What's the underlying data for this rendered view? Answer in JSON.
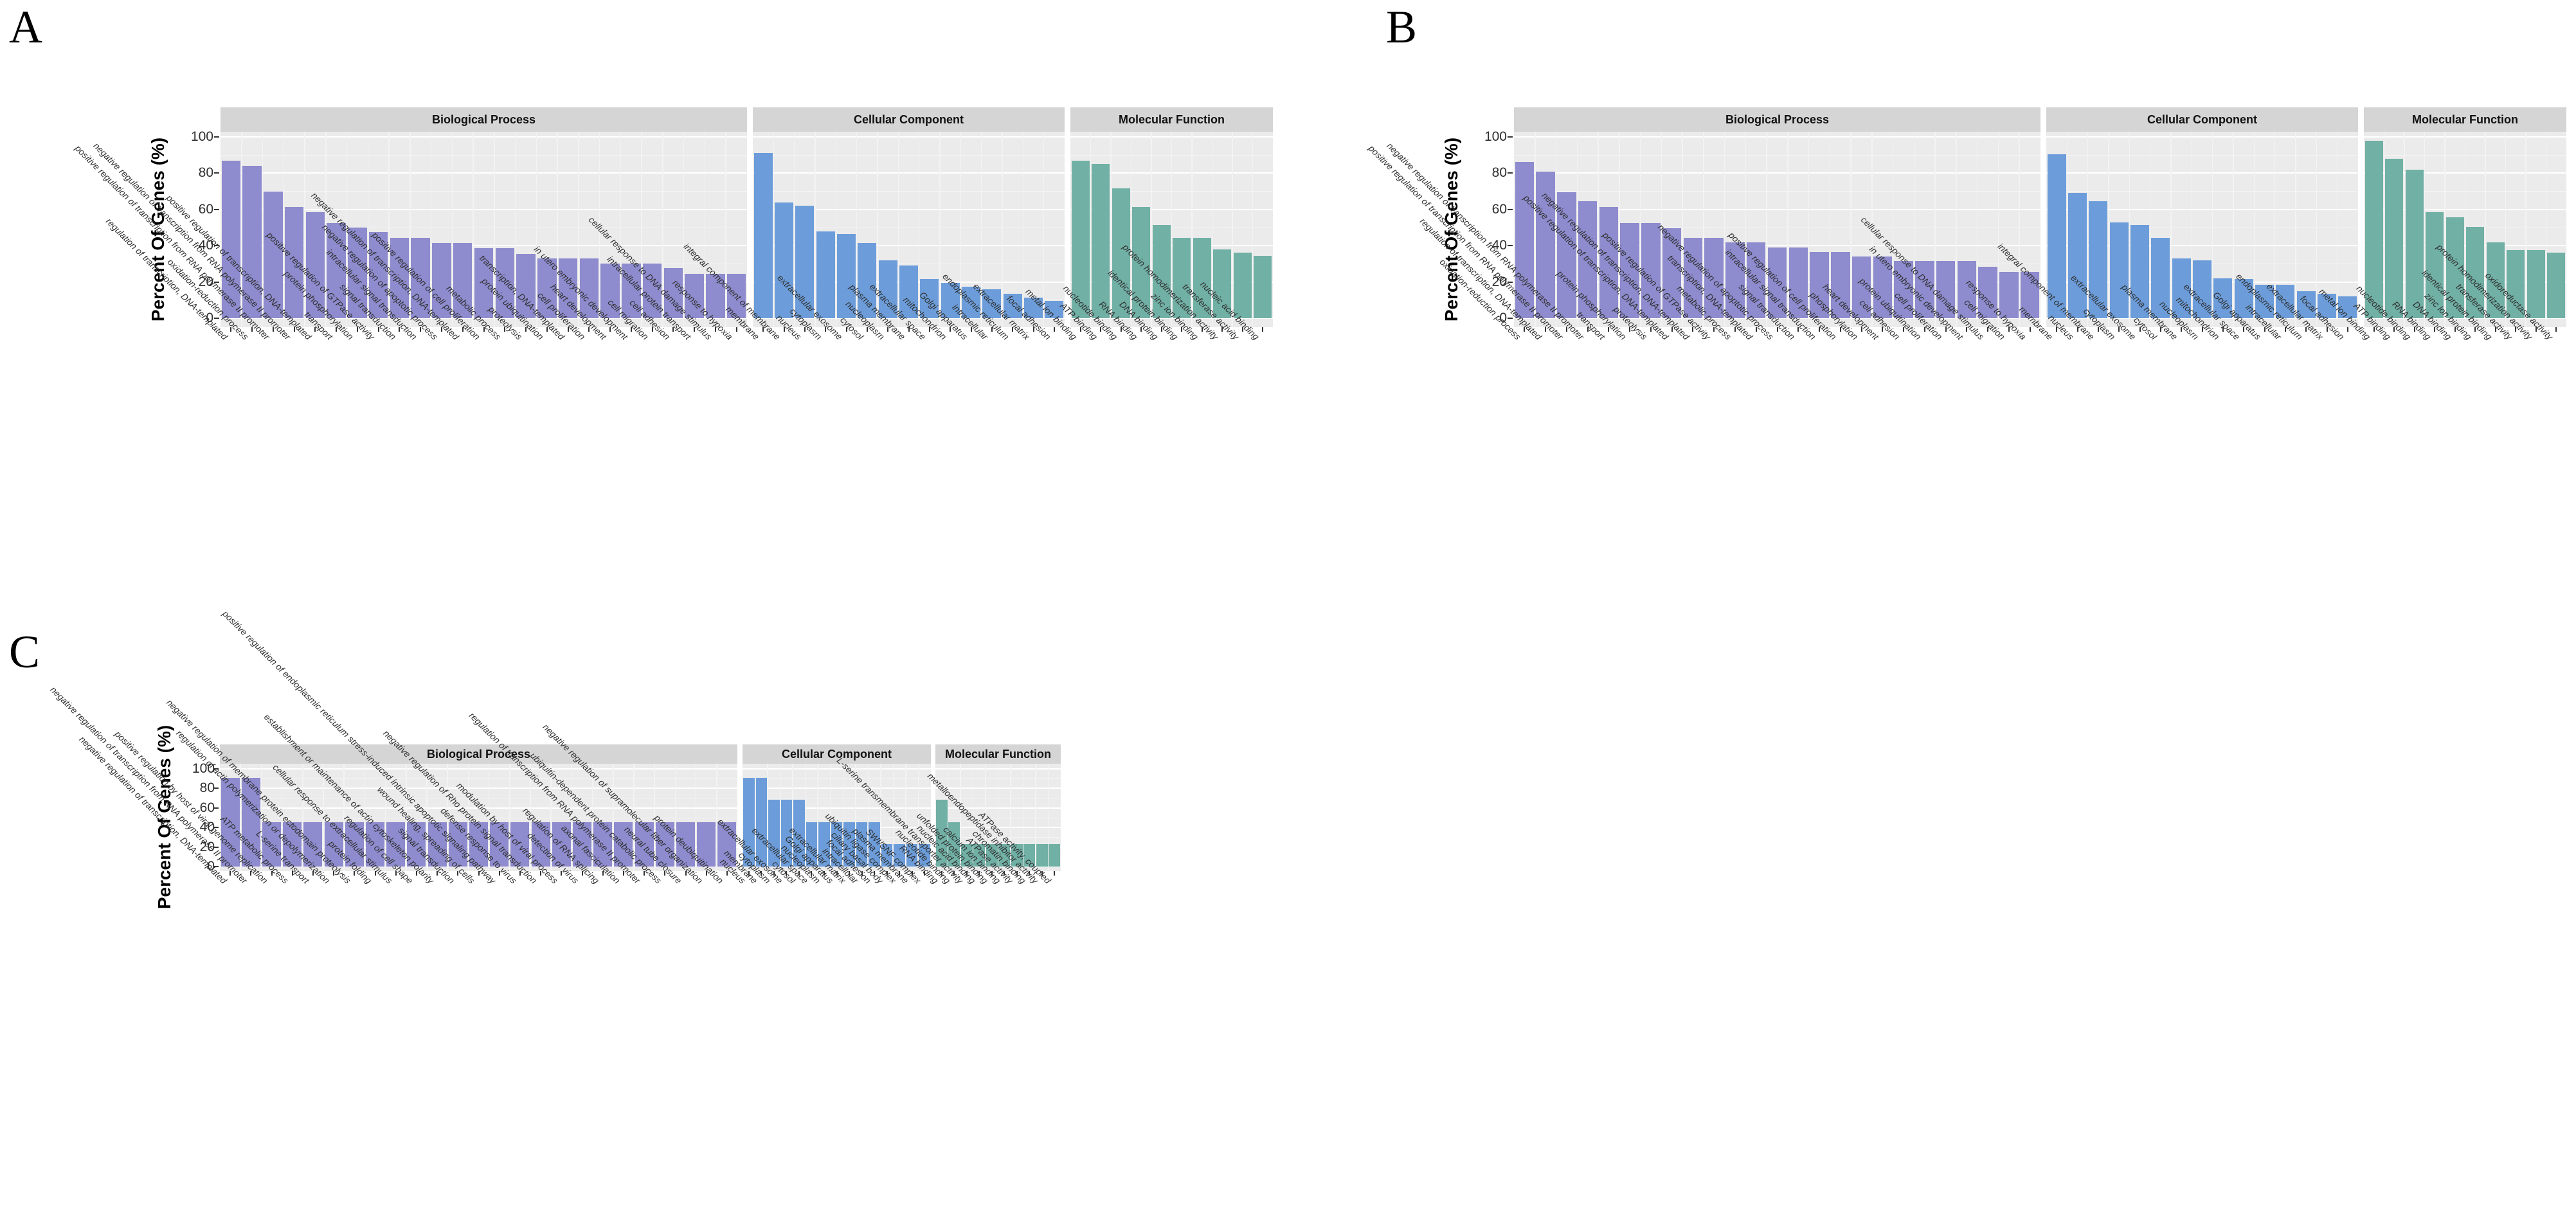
{
  "styling": {
    "bp_color": "#8E8BCE",
    "cc_color": "#6C9DDA",
    "mf_color": "#71B0A5",
    "strip_bg": "#D5D5D5",
    "plot_bg": "#EBEBEB",
    "grid_major": "#FFFFFF"
  },
  "chart_data": [
    {
      "type": "bar",
      "panel_label": "A",
      "ylabel": "Percent Of Genes (%)",
      "ylim": [
        0,
        100
      ],
      "y_ticks": [
        100,
        80,
        60,
        40,
        20,
        0
      ],
      "grid": true,
      "legend_position": "none",
      "facets": [
        {
          "title": "Biological Process",
          "color": "#8E8BCE",
          "categories": [
            "regulation of transcription, DNA-templated",
            "oxidation-reduction process",
            "positive regulation of transcription from RNA polymerase II promoter",
            "negative regulation of transcription from RNA polymerase II promoter",
            "positive regulation of transcription, DNA-templated",
            "transport",
            "protein phosphorylation",
            "positive regulation of GTPase activity",
            "signal transduction",
            "intracellular signal transduction",
            "negative regulation of apoptotic process",
            "negative regulation of transcription, DNA-templated",
            "positive regulation of cell proliferation",
            "metabolic process",
            "proteolysis",
            "protein ubiquitination",
            "transcription, DNA-templated",
            "cell proliferation",
            "heart development",
            "in utero embryonic development",
            "cell migration",
            "cell adhesion",
            "intracellular protein transport",
            "cellular response to DNA damage stimulus",
            "response to hypoxia"
          ],
          "values": [
            87,
            84,
            70,
            61.5,
            58.5,
            52.5,
            50,
            47.5,
            44.5,
            44.5,
            41.5,
            41.5,
            38.5,
            38.5,
            35.5,
            33,
            33,
            33,
            30,
            30,
            30,
            27.5,
            24.5,
            24.5,
            24.5
          ]
        },
        {
          "title": "Cellular Component",
          "color": "#6C9DDA",
          "categories": [
            "membrane",
            "integral component of membrane",
            "nucleus",
            "cytoplasm",
            "extracellular exosome",
            "cytosol",
            "nucleoplasm",
            "plasma membrane",
            "extracellular space",
            "mitochondrion",
            "Golgi apparatus",
            "intracellular",
            "endoplasmic reticulum",
            "extracellular matrix",
            "focal adhesion"
          ],
          "values": [
            91,
            64,
            62,
            48,
            46.5,
            41.5,
            32,
            29,
            21.5,
            19.5,
            17.5,
            16,
            13.5,
            11.5,
            9.5
          ]
        },
        {
          "title": "Molecular Function",
          "color": "#71B0A5",
          "categories": [
            "metal ion binding",
            "ATP binding",
            "nucleotide binding",
            "RNA binding",
            "DNA binding",
            "identical protein binding",
            "zinc ion binding",
            "protein homodimerization activity",
            "transferase activity",
            "nucleic acid binding"
          ],
          "values": [
            87,
            85,
            71.5,
            61.5,
            51.5,
            44.5,
            44.5,
            38,
            36,
            34.5
          ]
        }
      ]
    },
    {
      "type": "bar",
      "panel_label": "B",
      "ylabel": "Percent Of Genes (%)",
      "ylim": [
        0,
        100
      ],
      "y_ticks": [
        100,
        80,
        60,
        40,
        20,
        0
      ],
      "grid": true,
      "legend_position": "none",
      "facets": [
        {
          "title": "Biological Process",
          "color": "#8E8BCE",
          "categories": [
            "oxidation-reduction process",
            "regulation of transcription, DNA-templated",
            "positive regulation of transcription from RNA polymerase II promoter",
            "negative regulation of transcription from RNA polymerase II promoter",
            "transport",
            "protein phosphorylation",
            "proteolysis",
            "positive regulation of transcription, DNA-templated",
            "negative regulation of transcription, DNA-templated",
            "positive regulation of GTPase activity",
            "metabolic process",
            "transcription, DNA-templated",
            "negative regulation of apoptotic process",
            "signal transduction",
            "intracellular signal transduction",
            "positive regulation of cell proliferation",
            "phosphorylation",
            "heart development",
            "cell adhesion",
            "protein ubiquitination",
            "cell proliferation",
            "in utero embryonic development",
            "cellular response to DNA damage stimulus",
            "cell migration",
            "response to hypoxia"
          ],
          "values": [
            86,
            81,
            69.5,
            64.5,
            61.5,
            52.5,
            52.5,
            49.5,
            44.5,
            44.5,
            42,
            42,
            39,
            39,
            36.5,
            36.5,
            34,
            34,
            31.5,
            31.5,
            31.5,
            31.5,
            28.5,
            25.5,
            25.5
          ]
        },
        {
          "title": "Cellular Component",
          "color": "#6C9DDA",
          "categories": [
            "membrane",
            "nucleus",
            "integral component of membrane",
            "cytoplasm",
            "extracellular exosome",
            "cytosol",
            "plasma membrane",
            "nucleoplasm",
            "mitochondrion",
            "extracellular space",
            "Golgi apparatus",
            "intracellular",
            "endoplasmic reticulum",
            "extracellular matrix",
            "focal adhesion"
          ],
          "values": [
            90.5,
            69,
            64.5,
            53,
            51.5,
            44.5,
            33,
            32,
            22,
            21.5,
            18.5,
            18.5,
            15,
            13.5,
            12
          ]
        },
        {
          "title": "Molecular Function",
          "color": "#71B0A5",
          "categories": [
            "metal ion binding",
            "ATP binding",
            "nucleotide binding",
            "RNA binding",
            "DNA binding",
            "zinc ion binding",
            "identical protein binding",
            "transferase activity",
            "protein homodimerization activity",
            "oxidoreductase activity"
          ],
          "values": [
            98,
            88,
            82,
            58.5,
            55.5,
            50.5,
            42,
            37.5,
            37.5,
            36
          ]
        }
      ]
    },
    {
      "type": "bar",
      "panel_label": "C",
      "ylabel": "Percent Of Genes (%)",
      "ylim": [
        0,
        100
      ],
      "y_ticks": [
        100,
        80,
        60,
        40,
        20,
        0
      ],
      "grid": true,
      "legend_position": "none",
      "facets": [
        {
          "title": "Biological Process",
          "color": "#8E8BCE",
          "categories": [
            "negative regulation of transcription, DNA-templated",
            "negative regulation of transcription from RNA polymerase II promoter",
            "positive regulation by host of viral genome replication",
            "ATP metabolic process",
            "L-serine transport",
            "regulation of actin polymerization or depolymerization",
            "negative regulation of membrane protein ectodomain proteolysis",
            "protein folding",
            "cellular response to extracellular stimulus",
            "regulation of cell shape",
            "establishment or maintenance of actin cytoskeleton polarity",
            "signal transduction",
            "wound healing, spreading of cells",
            "positive regulation of endoplasmic reticulum stress-induced intrinsic apoptotic signaling pathway",
            "defense response to virus",
            "negative regulation of Rho protein signal transduction",
            "modulation by host of viral process",
            "detection of virus",
            "regulation of RNA splicing",
            "axonal fasciculation",
            "regulation of transcription from RNA polymerase II promoter",
            "ubiquitin-dependent protein catabolic process",
            "neural tube closure",
            "negative regulation of supramolecular fiber organization",
            "protein deubiquitination"
          ],
          "values": [
            90.9,
            90.9,
            45.5,
            45.5,
            45.5,
            45.5,
            45.5,
            45.5,
            45.5,
            45.5,
            45.5,
            45.5,
            45.5,
            45.5,
            45.5,
            45.5,
            45.5,
            45.5,
            45.5,
            45.5,
            45.5,
            45.5,
            45.5,
            45.5,
            45.5
          ]
        },
        {
          "title": "Cellular Component",
          "color": "#6C9DDA",
          "categories": [
            "nucleus",
            "membrane",
            "cytoplasm",
            "extracellular exosome",
            "cytosol",
            "extracellular space",
            "nucleoplasm",
            "Golgi apparatus",
            "extracellular matrix",
            "intracellular",
            "focal adhesion",
            "ciliary basal body",
            "ubiquitin ligase complex",
            "plasma membrane",
            "SWI/SNF complex"
          ],
          "values": [
            90.9,
            90.9,
            68.2,
            68.2,
            68.2,
            45.5,
            45.5,
            45.5,
            45.5,
            45.5,
            45.5,
            22.7,
            22.7,
            22.7,
            22.7
          ]
        },
        {
          "title": "Molecular Function",
          "color": "#71B0A5",
          "categories": [
            "RNA binding",
            "nucleotide binding",
            "L-serine transmembrane transporter activity",
            "nucleic acid binding",
            "unfolded protein binding",
            "calcium ion binding",
            "ATPase activity",
            "chromatin binding",
            "metalloendopeptidase inhibitor activity",
            "ATPase activity, coupled"
          ],
          "values": [
            68.2,
            45.5,
            22.7,
            22.7,
            22.7,
            22.7,
            22.7,
            22.7,
            22.7,
            22.7
          ]
        }
      ]
    }
  ]
}
